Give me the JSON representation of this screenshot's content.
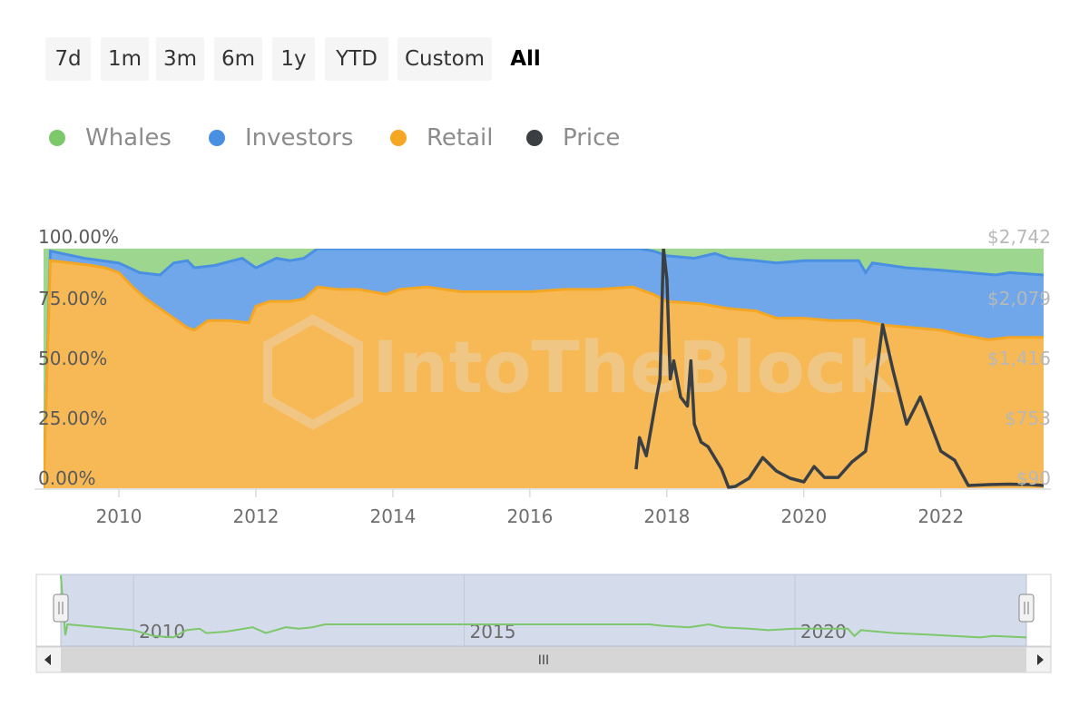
{
  "range_buttons": [
    {
      "label": "7d",
      "active": false
    },
    {
      "label": "1m",
      "active": false
    },
    {
      "label": "3m",
      "active": false
    },
    {
      "label": "6m",
      "active": false
    },
    {
      "label": "1y",
      "active": false
    },
    {
      "label": "YTD",
      "active": false
    },
    {
      "label": "Custom",
      "active": false
    },
    {
      "label": "All",
      "active": true
    }
  ],
  "legend": [
    {
      "label": "Whales",
      "color": "#7cc86a"
    },
    {
      "label": "Investors",
      "color": "#4a90e2"
    },
    {
      "label": "Retail",
      "color": "#f5a623"
    },
    {
      "label": "Price",
      "color": "#3a3f44"
    }
  ],
  "watermark": "IntoTheBlock",
  "chart_data": {
    "type": "area",
    "y_left_ticks": [
      "0.00%",
      "25.00%",
      "50.00%",
      "75.00%",
      "100.00%"
    ],
    "y_right_ticks": [
      "$90",
      "$753",
      "$1,416",
      "$2,079",
      "$2,742"
    ],
    "y_left_range": [
      0,
      100
    ],
    "y_right_range": [
      90,
      2742
    ],
    "x_ticks": [
      "2010",
      "2012",
      "2014",
      "2016",
      "2018",
      "2020",
      "2022"
    ],
    "x_range": [
      2008.9,
      2023.5
    ],
    "series": [
      {
        "name": "Retail",
        "stack": "cumulative_percent",
        "color": "#f5a623",
        "points": [
          [
            2008.9,
            0
          ],
          [
            2009.0,
            95
          ],
          [
            2009.3,
            94
          ],
          [
            2009.6,
            93
          ],
          [
            2009.8,
            92
          ],
          [
            2010.0,
            90
          ],
          [
            2010.2,
            84
          ],
          [
            2010.4,
            79
          ],
          [
            2010.7,
            73
          ],
          [
            2011.0,
            67
          ],
          [
            2011.1,
            66
          ],
          [
            2011.3,
            70
          ],
          [
            2011.6,
            70
          ],
          [
            2011.9,
            69
          ],
          [
            2012.0,
            76
          ],
          [
            2012.2,
            78
          ],
          [
            2012.5,
            78
          ],
          [
            2012.7,
            79
          ],
          [
            2012.9,
            84
          ],
          [
            2013.2,
            83
          ],
          [
            2013.5,
            83
          ],
          [
            2013.9,
            81
          ],
          [
            2014.1,
            83
          ],
          [
            2014.5,
            84
          ],
          [
            2015.0,
            82
          ],
          [
            2015.5,
            82
          ],
          [
            2016.0,
            82
          ],
          [
            2016.5,
            83
          ],
          [
            2017.0,
            83
          ],
          [
            2017.5,
            84
          ],
          [
            2017.8,
            81
          ],
          [
            2018.0,
            78
          ],
          [
            2018.5,
            77
          ],
          [
            2018.9,
            75
          ],
          [
            2019.3,
            74
          ],
          [
            2019.6,
            71
          ],
          [
            2020.0,
            71
          ],
          [
            2020.4,
            70
          ],
          [
            2020.8,
            70
          ],
          [
            2021.2,
            68
          ],
          [
            2021.6,
            67
          ],
          [
            2022.0,
            66
          ],
          [
            2022.3,
            64
          ],
          [
            2022.7,
            62
          ],
          [
            2023.0,
            63
          ],
          [
            2023.5,
            63
          ]
        ]
      },
      {
        "name": "Investors",
        "stack": "cumulative_percent",
        "color": "#4a90e2",
        "points": [
          [
            2008.9,
            0
          ],
          [
            2009.0,
            99
          ],
          [
            2009.5,
            96
          ],
          [
            2010.0,
            94
          ],
          [
            2010.3,
            90
          ],
          [
            2010.6,
            89
          ],
          [
            2010.8,
            94
          ],
          [
            2011.0,
            95
          ],
          [
            2011.1,
            92
          ],
          [
            2011.4,
            93
          ],
          [
            2011.8,
            96
          ],
          [
            2012.0,
            92
          ],
          [
            2012.3,
            96
          ],
          [
            2012.5,
            95
          ],
          [
            2012.7,
            96
          ],
          [
            2012.9,
            100
          ],
          [
            2014.0,
            100
          ],
          [
            2015.0,
            100
          ],
          [
            2016.0,
            100
          ],
          [
            2017.0,
            100
          ],
          [
            2017.6,
            100
          ],
          [
            2017.8,
            99
          ],
          [
            2018.0,
            97
          ],
          [
            2018.4,
            96
          ],
          [
            2018.7,
            98
          ],
          [
            2018.9,
            96
          ],
          [
            2019.3,
            95
          ],
          [
            2019.6,
            94
          ],
          [
            2020.0,
            95
          ],
          [
            2020.5,
            95
          ],
          [
            2020.8,
            95
          ],
          [
            2020.9,
            90
          ],
          [
            2021.0,
            94
          ],
          [
            2021.5,
            92
          ],
          [
            2022.0,
            91
          ],
          [
            2022.4,
            90
          ],
          [
            2022.8,
            89
          ],
          [
            2023.0,
            90
          ],
          [
            2023.5,
            89
          ]
        ]
      },
      {
        "name": "Whales",
        "stack": "cumulative_percent",
        "color": "#7cc86a",
        "points": [
          [
            2008.9,
            100
          ],
          [
            2023.5,
            100
          ]
        ]
      },
      {
        "name": "Price",
        "axis": "right",
        "color": "#3a3f44",
        "points": [
          [
            2017.55,
            300
          ],
          [
            2017.6,
            650
          ],
          [
            2017.7,
            450
          ],
          [
            2017.85,
            1100
          ],
          [
            2017.9,
            1300
          ],
          [
            2017.95,
            2742
          ],
          [
            2018.0,
            2400
          ],
          [
            2018.05,
            1300
          ],
          [
            2018.1,
            1500
          ],
          [
            2018.2,
            1100
          ],
          [
            2018.3,
            1000
          ],
          [
            2018.35,
            1500
          ],
          [
            2018.4,
            800
          ],
          [
            2018.5,
            600
          ],
          [
            2018.6,
            550
          ],
          [
            2018.8,
            300
          ],
          [
            2018.9,
            100
          ],
          [
            2019.0,
            110
          ],
          [
            2019.2,
            200
          ],
          [
            2019.4,
            430
          ],
          [
            2019.6,
            280
          ],
          [
            2019.8,
            200
          ],
          [
            2020.0,
            160
          ],
          [
            2020.15,
            330
          ],
          [
            2020.3,
            210
          ],
          [
            2020.5,
            210
          ],
          [
            2020.7,
            380
          ],
          [
            2020.9,
            500
          ],
          [
            2021.0,
            1000
          ],
          [
            2021.15,
            1900
          ],
          [
            2021.3,
            1400
          ],
          [
            2021.5,
            800
          ],
          [
            2021.7,
            1100
          ],
          [
            2021.9,
            700
          ],
          [
            2022.0,
            500
          ],
          [
            2022.2,
            400
          ],
          [
            2022.4,
            120
          ],
          [
            2022.7,
            130
          ],
          [
            2023.0,
            135
          ],
          [
            2023.3,
            130
          ],
          [
            2023.5,
            120
          ]
        ]
      }
    ],
    "navigator": {
      "x_ticks": [
        "2010",
        "2015",
        "2020"
      ],
      "scroll_grip": "III"
    }
  }
}
